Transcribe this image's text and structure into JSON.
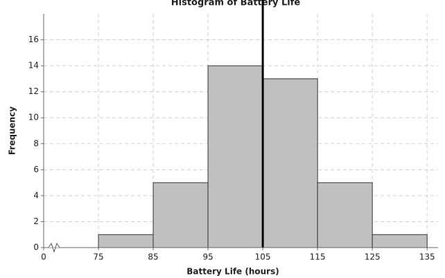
{
  "chart_data": {
    "type": "histogram",
    "title": "Histogram of Battery Life",
    "x_label": "Battery Life (hours)",
    "y_label": "Frequency",
    "bins": [
      75,
      85,
      95,
      105,
      115,
      125,
      135
    ],
    "values": [
      1,
      5,
      14,
      13,
      5,
      1
    ],
    "color": "#c0c0c0",
    "edge_color": "#333333",
    "xlim": [
      0,
      137
    ],
    "xticks": [
      0,
      75,
      85,
      95,
      105,
      115,
      125,
      135
    ],
    "axis_break": true,
    "ylim": [
      0,
      18
    ],
    "yticks": [
      0,
      2,
      4,
      6,
      8,
      10,
      12,
      14,
      16
    ],
    "grid": true,
    "vline": 105,
    "vline_color": "#000000"
  }
}
